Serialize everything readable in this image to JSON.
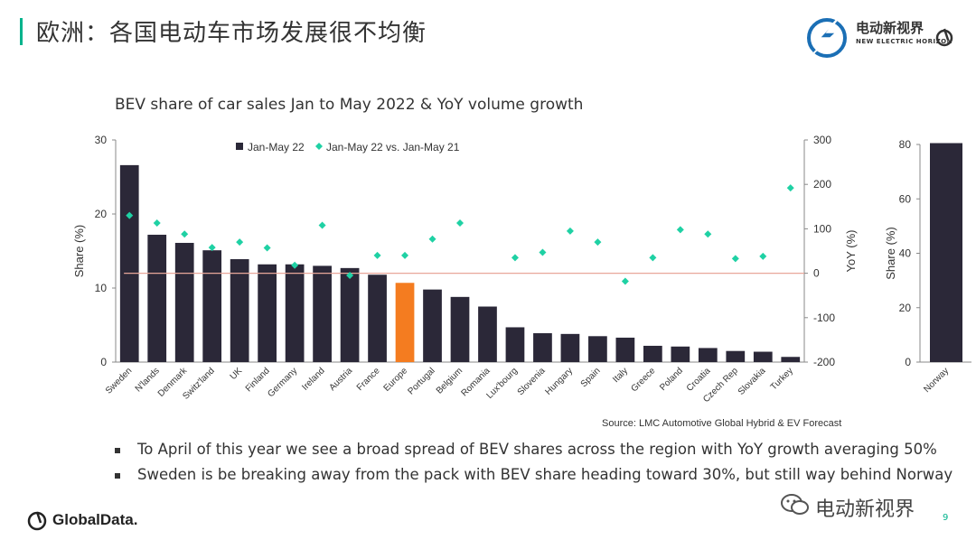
{
  "slide": {
    "title": "欧洲：各国电动车市场发展很不均衡",
    "page_number": "9",
    "brand_logo_cn": "电动新视界",
    "brand_logo_en": "NEW ELECTRIC HORIZON",
    "footer_logo": "GlobalData.",
    "watermark": "电动新视界",
    "accent_color": "#00b38c"
  },
  "source_text": "Source: LMC Automotive Global Hybrid & EV Forecast",
  "bullets": [
    "To April of this year we see a broad spread of BEV shares across the region with YoY growth averaging 50%",
    "Sweden is be breaking away from the pack with BEV share heading toward 30%, but still way behind Norway"
  ],
  "chart_data": [
    {
      "type": "bar",
      "title": "BEV share of car sales Jan to May 2022 & YoY volume growth",
      "ylabel": "Share (%)",
      "y2label": "YoY (%)",
      "ylim": [
        0,
        30
      ],
      "y2lim": [
        -200,
        300
      ],
      "yticks": [
        0,
        10,
        20,
        30
      ],
      "y2ticks": [
        -200,
        -100,
        0,
        100,
        200,
        300
      ],
      "y2tick_labels": [
        "-200",
        "-100",
        "0",
        "100",
        "200",
        "300"
      ],
      "legend_position": "top",
      "categories": [
        "Sweden",
        "N'lands",
        "Denmark",
        "Switz'land",
        "UK",
        "Finland",
        "Germany",
        "Ireland",
        "Austria",
        "France",
        "Europe",
        "Portugal",
        "Belgium",
        "Romania",
        "Lux'bourg",
        "Slovenia",
        "Hungary",
        "Spain",
        "Italy",
        "Greece",
        "Poland",
        "Croatia",
        "Czech Rep",
        "Slovakia",
        "Turkey"
      ],
      "highlight_category": "Europe",
      "colors": {
        "bar": "#2b2838",
        "highlight": "#f47c20",
        "marker": "#1fd1a4",
        "zero_line": "#e8a79a"
      },
      "series": [
        {
          "name": "Jan-May 22",
          "kind": "bar",
          "axis": "left",
          "values": [
            26.6,
            17.2,
            16.1,
            15.1,
            13.9,
            13.2,
            13.2,
            13.0,
            12.7,
            11.8,
            10.7,
            9.8,
            8.8,
            7.5,
            4.7,
            3.9,
            3.8,
            3.5,
            3.3,
            2.2,
            2.1,
            1.9,
            1.5,
            1.4,
            0.7
          ]
        },
        {
          "name": "Jan-May 22 vs. Jan-May 21",
          "kind": "scatter",
          "axis": "right",
          "values": [
            130,
            113,
            88,
            58,
            70,
            57,
            18,
            108,
            -5,
            40,
            40,
            77,
            113,
            null,
            35,
            47,
            95,
            70,
            -18,
            35,
            98,
            88,
            33,
            38,
            192
          ]
        }
      ]
    },
    {
      "type": "bar",
      "ylabel": "Share (%)",
      "ylim": [
        0,
        80
      ],
      "yticks": [
        0,
        20,
        40,
        60,
        80
      ],
      "categories": [
        "Norway"
      ],
      "colors": {
        "bar": "#2b2838"
      },
      "series": [
        {
          "values": [
            80.5
          ]
        }
      ]
    }
  ]
}
